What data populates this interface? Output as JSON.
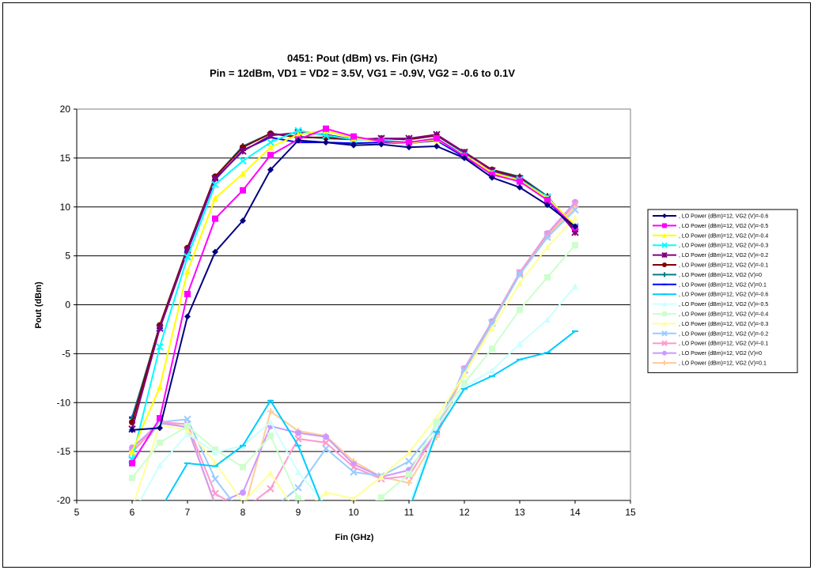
{
  "chart_data": {
    "type": "line",
    "title": "0451: Pout (dBm) vs. Fin (GHz)",
    "subtitle": "Pin = 12dBm, VD1 = VD2 = 3.5V, VG1 = -0.9V, VG2 = -0.6 to 0.1V",
    "xlabel": "Fin (GHz)",
    "ylabel": "Pout (dBm)",
    "xlim": [
      5,
      15
    ],
    "ylim": [
      -20,
      20
    ],
    "xticks": [
      "5",
      "6",
      "7",
      "8",
      "9",
      "10",
      "11",
      "12",
      "13",
      "14",
      "15"
    ],
    "yticks": [
      "20",
      "15",
      "10",
      "5",
      "0",
      "-5",
      "-10",
      "-15",
      "-20"
    ],
    "grid": "horizontal",
    "legend_position": "right",
    "x": [
      6,
      6.5,
      7,
      7.5,
      8,
      8.5,
      9,
      9.5,
      10,
      10.5,
      11,
      11.5,
      12,
      12.5,
      13,
      13.5,
      14
    ],
    "series": [
      {
        "name": ", LO Power (dBm)=12, VG2 (V)=-0.6",
        "color": "#000080",
        "marker": "diamond",
        "values": [
          -12.8,
          -12.6,
          -1.2,
          5.4,
          8.6,
          13.8,
          16.8,
          16.6,
          16.3,
          16.4,
          16.1,
          16.2,
          15.0,
          13.0,
          12.0,
          10.2,
          8.0
        ]
      },
      {
        "name": ", LO Power (dBm)=12, VG2 (V)=-0.5",
        "color": "#ff00ff",
        "marker": "square",
        "values": [
          -16.2,
          -11.6,
          1.1,
          8.8,
          11.7,
          15.3,
          16.9,
          18.0,
          17.2,
          16.7,
          16.6,
          17.0,
          15.2,
          13.3,
          12.6,
          10.7,
          7.9
        ]
      },
      {
        "name": ", LO Power (dBm)=12, VG2 (V)=-0.4",
        "color": "#ffff00",
        "marker": "triangle",
        "values": [
          -15.0,
          -8.4,
          3.4,
          10.9,
          13.4,
          16.1,
          17.4,
          17.8,
          17.0,
          16.7,
          16.5,
          16.9,
          15.3,
          13.5,
          12.7,
          10.9,
          8.1
        ]
      },
      {
        "name": ", LO Power (dBm)=12, VG2 (V)=-0.3",
        "color": "#00ffff",
        "marker": "x",
        "values": [
          -15.8,
          -4.3,
          4.9,
          12.3,
          14.7,
          16.6,
          17.8,
          17.3,
          16.9,
          16.8,
          16.6,
          17.0,
          15.3,
          13.5,
          12.8,
          11.0,
          8.0
        ]
      },
      {
        "name": ", LO Power (dBm)=12, VG2 (V)=-0.2",
        "color": "#800080",
        "marker": "star",
        "values": [
          -12.7,
          -2.4,
          5.6,
          12.9,
          15.7,
          17.3,
          17.6,
          17.4,
          16.9,
          17.0,
          17.0,
          17.4,
          15.6,
          13.7,
          12.9,
          11.0,
          7.4
        ]
      },
      {
        "name": ", LO Power (dBm)=12, VG2 (V)=-0.1",
        "color": "#800000",
        "marker": "circle",
        "values": [
          -12.0,
          -2.1,
          5.8,
          13.1,
          16.1,
          17.5,
          17.1,
          17.1,
          16.9,
          17.0,
          16.9,
          17.3,
          15.6,
          13.8,
          13.0,
          11.0,
          7.6
        ]
      },
      {
        "name": ", LO Power (dBm)=12, VG2 (V)=0",
        "color": "#008080",
        "marker": "plus",
        "values": [
          -11.6,
          -2.1,
          5.8,
          13.1,
          16.2,
          17.5,
          17.2,
          17.0,
          16.9,
          17.0,
          16.9,
          17.3,
          15.5,
          13.8,
          13.1,
          11.1,
          7.7
        ]
      },
      {
        "name": ", LO Power (dBm)=12, VG2 (V)=0.1",
        "color": "#0000ff",
        "marker": "dash",
        "values": [
          -11.5,
          -2.4,
          5.5,
          12.8,
          15.8,
          17.1,
          16.6,
          16.6,
          16.5,
          16.6,
          16.5,
          16.8,
          15.1,
          13.4,
          12.7,
          10.7,
          7.5
        ]
      },
      {
        "name": ", LO Power (dBm)=12, VG2 (V)=-0.6",
        "color": "#00ccff",
        "marker": "dash",
        "values": [
          -24.0,
          -21.0,
          -16.2,
          -16.5,
          -14.4,
          -9.8,
          -14.4,
          -21.5,
          -24.5,
          -22.5,
          -21.0,
          -13.0,
          -8.6,
          -7.3,
          -5.6,
          -4.9,
          -2.7
        ]
      },
      {
        "name": ", LO Power (dBm)=12, VG2 (V)=-0.5",
        "color": "#ccffff",
        "marker": "triangle",
        "values": [
          -21.5,
          -16.4,
          -13.2,
          -15.1,
          -14.4,
          -12.0,
          -17.1,
          -20.5,
          -22.5,
          -21.5,
          -20.5,
          -12.5,
          -8.4,
          -6.7,
          -4.0,
          -1.5,
          1.9
        ]
      },
      {
        "name": ", LO Power (dBm)=12, VG2 (V)=-0.4",
        "color": "#ccffcc",
        "marker": "square",
        "values": [
          -17.7,
          -14.1,
          -12.4,
          -14.8,
          -16.6,
          -13.4,
          -19.8,
          -21.0,
          -21.5,
          -19.7,
          -17.3,
          -12.0,
          -8.0,
          -4.5,
          -0.5,
          2.8,
          6.1
        ]
      },
      {
        "name": ", LO Power (dBm)=12, VG2 (V)=-0.3",
        "color": "#ffff99",
        "marker": "triangle",
        "values": [
          -20.8,
          -12.3,
          -12.8,
          -16.1,
          -20.2,
          -17.2,
          -21.5,
          -19.2,
          -19.8,
          -17.6,
          -15.1,
          -11.5,
          -7.1,
          -2.4,
          2.2,
          5.9,
          8.9
        ]
      },
      {
        "name": ", LO Power (dBm)=12, VG2 (V)=-0.2",
        "color": "#99ccff",
        "marker": "x",
        "values": [
          -15.9,
          -12.0,
          -11.7,
          -17.8,
          -21.5,
          -21.0,
          -18.7,
          -14.7,
          -17.1,
          -17.5,
          -16.0,
          -12.5,
          -6.7,
          -1.9,
          3.1,
          6.9,
          9.7
        ]
      },
      {
        "name": ", LO Power (dBm)=12, VG2 (V)=-0.1",
        "color": "#ff99cc",
        "marker": "x",
        "values": [
          -15.1,
          -12.0,
          -12.2,
          -19.3,
          -21.0,
          -18.8,
          -13.7,
          -14.1,
          -16.6,
          -17.8,
          -17.5,
          -13.0,
          -6.6,
          -1.8,
          3.3,
          7.2,
          10.3
        ]
      },
      {
        "name": ", LO Power (dBm)=12, VG2 (V)=0",
        "color": "#cc99ff",
        "marker": "circle",
        "values": [
          -14.6,
          -12.1,
          -12.5,
          -20.4,
          -19.2,
          -12.4,
          -13.1,
          -13.5,
          -16.3,
          -17.6,
          -16.9,
          -13.0,
          -6.5,
          -1.7,
          3.3,
          7.3,
          10.5
        ]
      },
      {
        "name": ", LO Power (dBm)=12, VG2 (V)=0.1",
        "color": "#ffcc99",
        "marker": "plus",
        "values": [
          -15.0,
          -11.8,
          -12.6,
          -20.5,
          -21.5,
          -10.9,
          -12.9,
          -13.4,
          -16.0,
          -17.6,
          -18.2,
          -13.5,
          -6.8,
          -2.0,
          3.1,
          7.0,
          10.0
        ]
      }
    ]
  }
}
